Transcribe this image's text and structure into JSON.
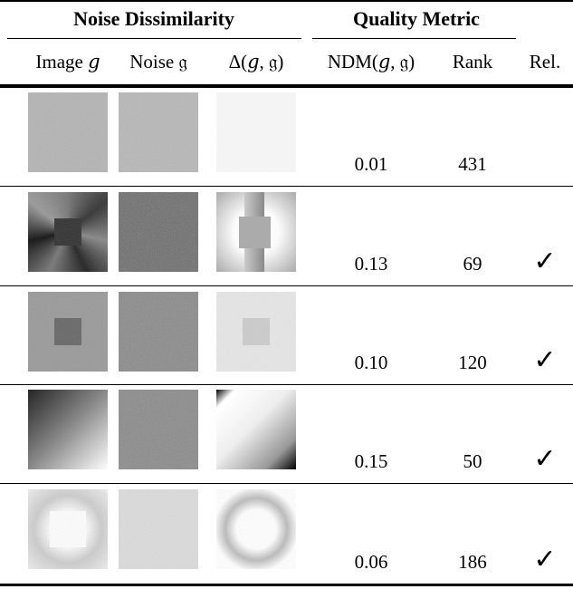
{
  "header": {
    "groups": [
      "Noise Dissimilarity",
      "Quality Metric"
    ],
    "columns": [
      "Image 𝑔",
      "Noise 𝔤",
      "Δ(𝑔, 𝔤)",
      "NDM(𝑔, 𝔤)",
      "Rank",
      "Rel."
    ]
  },
  "table": {
    "rows": [
      {
        "ndm": "0.01",
        "rank": "431"
      },
      {
        "ndm": "0.13",
        "rank": "69",
        "rel": "✓"
      },
      {
        "ndm": "0.10",
        "rank": "120",
        "rel": "✓"
      },
      {
        "ndm": "0.15",
        "rank": "50",
        "rel": "✓"
      },
      {
        "ndm": "0.06",
        "rank": "186",
        "rel": "✓"
      }
    ]
  }
}
